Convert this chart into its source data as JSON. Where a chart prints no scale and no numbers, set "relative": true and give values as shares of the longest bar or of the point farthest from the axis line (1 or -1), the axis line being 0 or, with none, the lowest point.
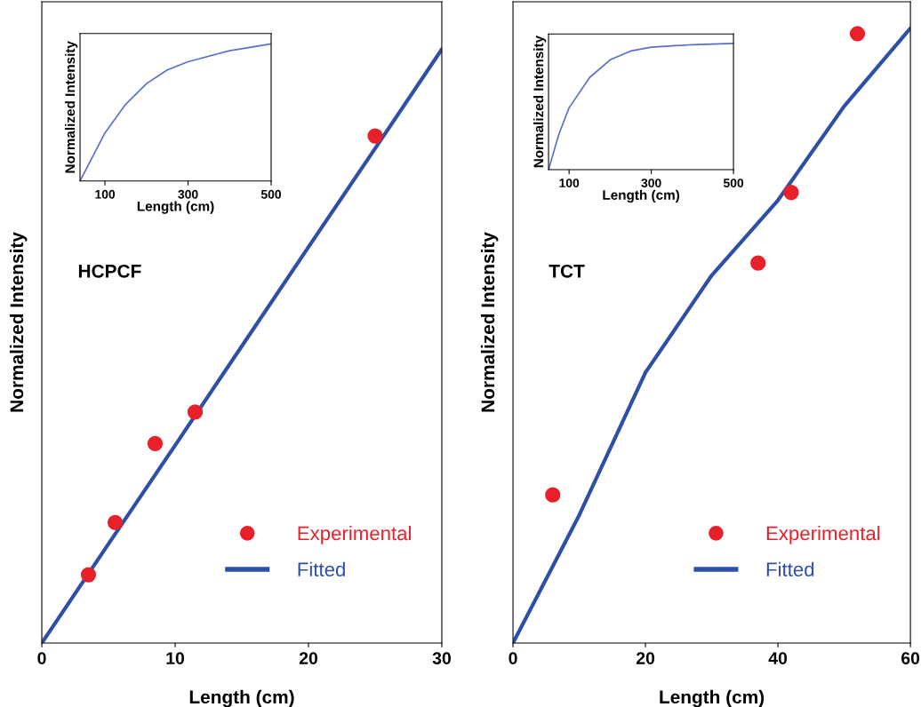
{
  "chart_data": [
    {
      "type": "scatter",
      "relative": true,
      "xlabel": "Length (cm)",
      "ylabel": "Normalized Intensity",
      "xlim": [
        0,
        30
      ],
      "xticks": [
        0,
        10,
        20,
        30
      ],
      "tick_labels": "x",
      "legend": "bottom right",
      "annotations": [
        "HCPCF"
      ],
      "series": [
        {
          "name": "Experimental",
          "marker": "circle",
          "color": "#e8202a",
          "x": [
            3.5,
            5.5,
            8.5,
            11.5,
            25
          ],
          "values": [
            0.115,
            0.203,
            0.336,
            0.389,
            0.854
          ]
        },
        {
          "name": "Fitted",
          "type": "line",
          "color": "#2e4fa8",
          "x": [
            0,
            5,
            10,
            15,
            20,
            25,
            30
          ],
          "values": [
            0,
            0.167,
            0.333,
            0.5,
            0.667,
            0.833,
            1
          ]
        }
      ]
    },
    {
      "type": "line",
      "relative": true,
      "xlabel": "Length (cm)",
      "ylabel": "Normalized Intensity",
      "xlim": [
        40,
        500
      ],
      "xticks": [
        100,
        300,
        500
      ],
      "tick_labels": "x",
      "series": [
        {
          "color": "#5a6fc8",
          "x": [
            40,
            100,
            150,
            200,
            250,
            300,
            400,
            500
          ],
          "values": [
            0,
            0.35,
            0.56,
            0.71,
            0.81,
            0.87,
            0.95,
            1
          ]
        }
      ]
    },
    {
      "type": "scatter",
      "relative": true,
      "xlabel": "Length (cm)",
      "ylabel": "Normalized Intensity",
      "xlim": [
        0,
        60
      ],
      "xticks": [
        0,
        20,
        40,
        60
      ],
      "tick_labels": "x",
      "legend": "bottom right",
      "annotations": [
        "TCT"
      ],
      "series": [
        {
          "name": "Experimental",
          "marker": "circle",
          "color": "#e8202a",
          "x": [
            6,
            37,
            42,
            52
          ],
          "values": [
            0.241,
            0.618,
            0.733,
            0.991
          ]
        },
        {
          "name": "Fitted",
          "type": "line",
          "color": "#2e4fa8",
          "x": [
            0,
            10,
            20,
            30,
            40,
            50,
            60
          ],
          "values": [
            0,
            0.208,
            0.44,
            0.598,
            0.72,
            0.873,
            1
          ]
        }
      ]
    },
    {
      "type": "line",
      "relative": true,
      "xlabel": "Length (cm)",
      "ylabel": "Normalized Intensity",
      "xlim": [
        50,
        500
      ],
      "xticks": [
        100,
        300,
        500
      ],
      "tick_labels": "x",
      "series": [
        {
          "color": "#5a6fc8",
          "x": [
            50,
            75,
            100,
            150,
            200,
            250,
            300,
            400,
            500
          ],
          "values": [
            0,
            0.28,
            0.49,
            0.73,
            0.87,
            0.94,
            0.97,
            0.99,
            1
          ]
        }
      ]
    }
  ]
}
